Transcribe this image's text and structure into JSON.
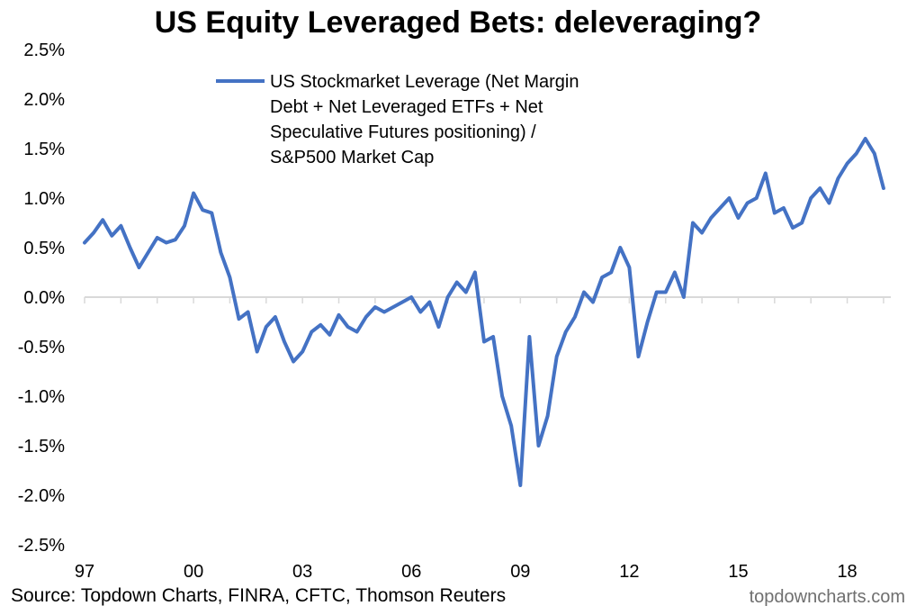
{
  "chart_data": {
    "type": "line",
    "title": "US Equity Leveraged Bets: deleveraging?",
    "xlabel": "",
    "ylabel": "",
    "ylim": [
      -2.5,
      2.5
    ],
    "x_tick_labels": [
      "97",
      "00",
      "03",
      "06",
      "09",
      "12",
      "15",
      "18"
    ],
    "y_tick_labels": [
      "2.5%",
      "2.0%",
      "1.5%",
      "1.0%",
      "0.5%",
      "0.0%",
      "-0.5%",
      "-1.0%",
      "-1.5%",
      "-2.0%",
      "-2.5%"
    ],
    "legend": {
      "position": "top-center",
      "lines": [
        "US Stockmarket Leverage (Net Margin",
        "Debt + Net Leveraged ETFs + Net",
        "Speculative Futures positioning) /",
        "S&P500 Market Cap"
      ]
    },
    "grid": false,
    "color": "#4472C4",
    "series": [
      {
        "name": "US Stockmarket Leverage (Net Margin Debt + Net Leveraged ETFs + Net Speculative Futures positioning) / S&P500 Market Cap",
        "x": [
          1997.0,
          1997.25,
          1997.5,
          1997.75,
          1998.0,
          1998.25,
          1998.5,
          1998.75,
          1999.0,
          1999.25,
          1999.5,
          1999.75,
          2000.0,
          2000.25,
          2000.5,
          2000.75,
          2001.0,
          2001.25,
          2001.5,
          2001.75,
          2002.0,
          2002.25,
          2002.5,
          2002.75,
          2003.0,
          2003.25,
          2003.5,
          2003.75,
          2004.0,
          2004.25,
          2004.5,
          2004.75,
          2005.0,
          2005.25,
          2005.5,
          2005.75,
          2006.0,
          2006.25,
          2006.5,
          2006.75,
          2007.0,
          2007.25,
          2007.5,
          2007.75,
          2008.0,
          2008.25,
          2008.5,
          2008.75,
          2009.0,
          2009.25,
          2009.5,
          2009.75,
          2010.0,
          2010.25,
          2010.5,
          2010.75,
          2011.0,
          2011.25,
          2011.5,
          2011.75,
          2012.0,
          2012.25,
          2012.5,
          2012.75,
          2013.0,
          2013.25,
          2013.5,
          2013.75,
          2014.0,
          2014.25,
          2014.5,
          2014.75,
          2015.0,
          2015.25,
          2015.5,
          2015.75,
          2016.0,
          2016.25,
          2016.5,
          2016.75,
          2017.0,
          2017.25,
          2017.5,
          2017.75,
          2018.0,
          2018.25,
          2018.5,
          2018.75,
          2019.0
        ],
        "y": [
          0.55,
          0.65,
          0.78,
          0.62,
          0.72,
          0.5,
          0.3,
          0.45,
          0.6,
          0.55,
          0.58,
          0.72,
          1.05,
          0.88,
          0.85,
          0.45,
          0.2,
          -0.22,
          -0.15,
          -0.55,
          -0.3,
          -0.2,
          -0.45,
          -0.65,
          -0.55,
          -0.35,
          -0.28,
          -0.38,
          -0.18,
          -0.3,
          -0.35,
          -0.2,
          -0.1,
          -0.15,
          -0.1,
          -0.05,
          0.0,
          -0.15,
          -0.05,
          -0.3,
          0.0,
          0.15,
          0.05,
          0.25,
          -0.45,
          -0.4,
          -1.0,
          -1.3,
          -1.9,
          -0.4,
          -1.5,
          -1.2,
          -0.6,
          -0.35,
          -0.2,
          0.05,
          -0.05,
          0.2,
          0.25,
          0.5,
          0.3,
          -0.6,
          -0.25,
          0.05,
          0.05,
          0.25,
          0.0,
          0.75,
          0.65,
          0.8,
          0.9,
          1.0,
          0.8,
          0.95,
          1.0,
          1.25,
          0.85,
          0.9,
          0.7,
          0.75,
          1.0,
          1.1,
          0.95,
          1.2,
          1.35,
          1.45,
          1.6,
          1.45,
          1.1
        ]
      }
    ]
  },
  "source_note": "Source: Topdown Charts, FINRA, CFTC, Thomson Reuters",
  "watermark": "topdowncharts.com"
}
